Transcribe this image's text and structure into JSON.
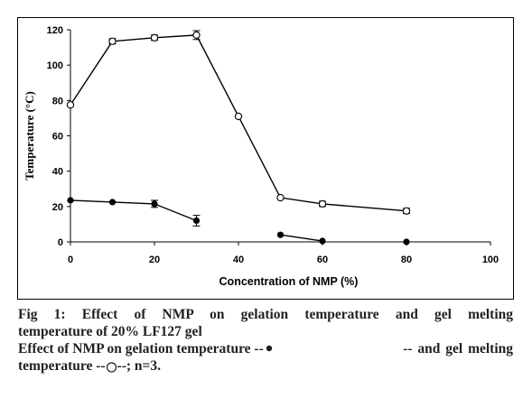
{
  "chart_data": {
    "type": "line",
    "xlabel": "Concentration of NMP (%)",
    "ylabel": "Temperature (°C)",
    "xlim": [
      0,
      100
    ],
    "ylim": [
      0,
      120
    ],
    "xticks": [
      0,
      20,
      40,
      60,
      80,
      100
    ],
    "yticks": [
      0,
      20,
      40,
      60,
      80,
      100,
      120
    ],
    "grid": false,
    "legend": "none",
    "series": [
      {
        "marker": "open-circle",
        "points": [
          {
            "x": 0,
            "y": 77.5,
            "err": 0
          },
          {
            "x": 10,
            "y": 113.5,
            "err": 1.5
          },
          {
            "x": 20,
            "y": 115.5,
            "err": 1.5
          },
          {
            "x": 30,
            "y": 117,
            "err": 2.5
          },
          {
            "x": 40,
            "y": 71,
            "err": 0
          },
          {
            "x": 50,
            "y": 25,
            "err": 0
          },
          {
            "x": 60,
            "y": 21.5,
            "err": 1.5
          },
          {
            "x": 80,
            "y": 17.5,
            "err": 1.5
          }
        ]
      },
      {
        "marker": "filled-circle",
        "segments": [
          [
            {
              "x": 0,
              "y": 23.5,
              "err": 0
            },
            {
              "x": 10,
              "y": 22.5,
              "err": 0
            },
            {
              "x": 20,
              "y": 21.5,
              "err": 2
            },
            {
              "x": 30,
              "y": 12,
              "err": 3
            }
          ],
          [
            {
              "x": 50,
              "y": 4,
              "err": 0
            },
            {
              "x": 60,
              "y": 0.5,
              "err": 0
            }
          ],
          [
            {
              "x": 80,
              "y": 0,
              "err": 0
            }
          ]
        ]
      }
    ]
  },
  "caption": {
    "title_line1": "Fig 1: Effect of NMP on gelation temperature and gel melting",
    "title_line2": "temperature of 20% LF127 gel",
    "body_line1_a": "Effect of NMP on gelation temperature --",
    "body_line1_b": "-- and gel melting",
    "body_line2_a": "temperature --",
    "body_line2_b": "--; n=3."
  }
}
